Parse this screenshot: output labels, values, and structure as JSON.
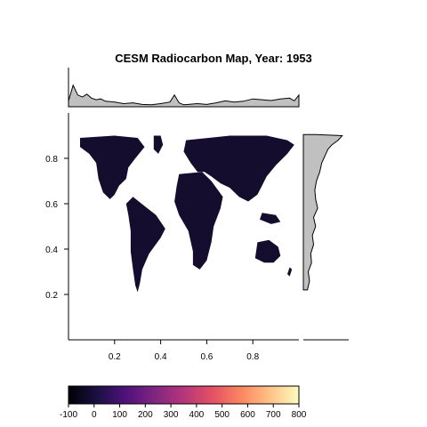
{
  "chart_data": {
    "type": "heatmap",
    "title": "CESM Radiocarbon Map,  Year:  1953",
    "xlabel": "",
    "ylabel": "",
    "xlim": [
      0,
      1
    ],
    "ylim": [
      0,
      1
    ],
    "x_ticks": [
      "0.2",
      "0.4",
      "0.6",
      "0.8"
    ],
    "y_ticks": [
      "0.2",
      "0.4",
      "0.6",
      "0.8"
    ],
    "map_fill_color": "#150d2e",
    "colorbar": {
      "min": -100,
      "max": 800,
      "ticks": [
        "-100",
        "0",
        "100",
        "200",
        "300",
        "400",
        "500",
        "600",
        "700",
        "800"
      ],
      "colors": [
        "#000004",
        "#1c1044",
        "#4f127b",
        "#812581",
        "#b5367a",
        "#e55064",
        "#fb8761",
        "#fec287",
        "#fcfdbf"
      ]
    },
    "top_marginal": {
      "type": "area",
      "fill": "#c0c0c0",
      "x": [
        0.0,
        0.02,
        0.04,
        0.06,
        0.08,
        0.1,
        0.12,
        0.14,
        0.16,
        0.2,
        0.24,
        0.28,
        0.32,
        0.36,
        0.4,
        0.44,
        0.46,
        0.48,
        0.5,
        0.52,
        0.56,
        0.6,
        0.64,
        0.68,
        0.72,
        0.76,
        0.8,
        0.84,
        0.88,
        0.92,
        0.96,
        0.98,
        1.0
      ],
      "values": [
        0.15,
        0.55,
        0.3,
        0.25,
        0.32,
        0.22,
        0.18,
        0.2,
        0.14,
        0.12,
        0.08,
        0.1,
        0.06,
        0.05,
        0.08,
        0.12,
        0.3,
        0.1,
        0.05,
        0.06,
        0.08,
        0.06,
        0.1,
        0.15,
        0.12,
        0.14,
        0.2,
        0.18,
        0.16,
        0.2,
        0.22,
        0.15,
        0.3
      ]
    },
    "right_marginal": {
      "type": "area",
      "fill": "#c0c0c0",
      "y": [
        0.22,
        0.26,
        0.3,
        0.34,
        0.38,
        0.42,
        0.46,
        0.5,
        0.54,
        0.58,
        0.62,
        0.66,
        0.7,
        0.74,
        0.78,
        0.8,
        0.82,
        0.84,
        0.86,
        0.88,
        0.9,
        0.905
      ],
      "values": [
        0.1,
        0.15,
        0.12,
        0.2,
        0.18,
        0.25,
        0.22,
        0.3,
        0.25,
        0.35,
        0.3,
        0.28,
        0.32,
        0.4,
        0.45,
        0.5,
        0.55,
        0.6,
        0.7,
        0.85,
        0.95,
        0.3
      ]
    }
  }
}
